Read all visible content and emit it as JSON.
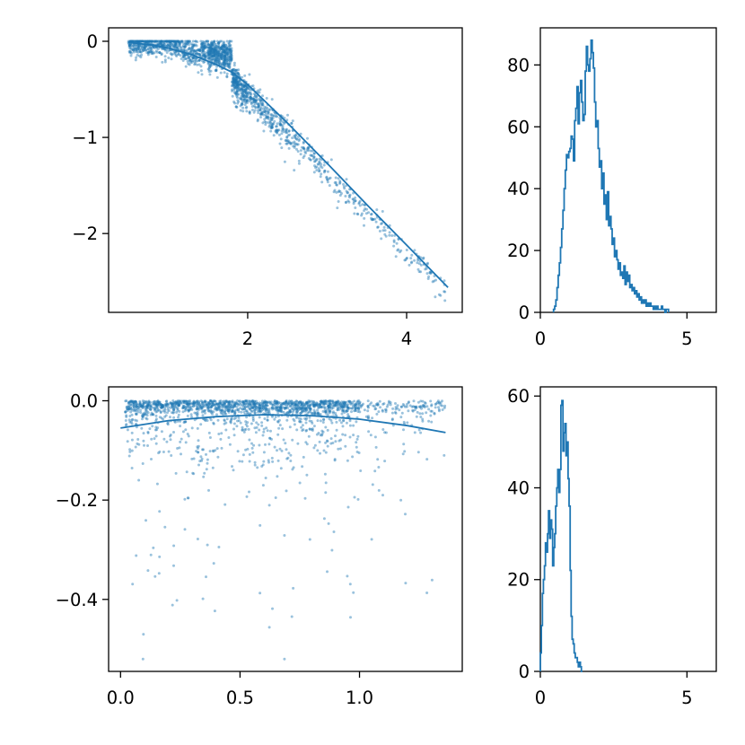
{
  "chart_data": [
    {
      "type": "scatter",
      "title": "",
      "xlabel": "",
      "ylabel": "",
      "xlim": [
        0.25,
        4.7
      ],
      "ylim": [
        -2.82,
        0.14
      ],
      "x_ticks": [
        2,
        4
      ],
      "x_tick_labels": [
        "2",
        "4"
      ],
      "y_ticks": [
        0,
        -1,
        -2
      ],
      "y_tick_labels": [
        "0",
        "−1",
        "−2"
      ],
      "points_color": "#1f77b4",
      "approx_point_count": 1800,
      "scatter_description_values": {
        "x_range": [
          0.45,
          4.55
        ],
        "y_at_x": [
          [
            0.5,
            0.0
          ],
          [
            1.0,
            -0.03
          ],
          [
            1.5,
            -0.12
          ],
          [
            2.0,
            -0.45
          ],
          [
            2.5,
            -0.85
          ],
          [
            3.0,
            -1.25
          ],
          [
            3.5,
            -1.7
          ],
          [
            4.0,
            -2.1
          ],
          [
            4.5,
            -2.6
          ]
        ]
      },
      "fit_line": {
        "x": [
          0.5,
          0.8,
          1.0,
          1.3,
          1.6,
          1.8,
          2.0,
          2.5,
          3.0,
          3.5,
          4.0,
          4.52
        ],
        "y": [
          -0.01,
          -0.04,
          -0.07,
          -0.14,
          -0.24,
          -0.32,
          -0.45,
          -0.85,
          -1.27,
          -1.7,
          -2.12,
          -2.56
        ]
      }
    },
    {
      "type": "bar",
      "subtype": "step-histogram",
      "title": "",
      "xlabel": "",
      "ylabel": "",
      "xlim": [
        0,
        6
      ],
      "ylim": [
        0,
        92
      ],
      "x_ticks": [
        0,
        5
      ],
      "x_tick_labels": [
        "0",
        "5"
      ],
      "y_ticks": [
        0,
        20,
        40,
        60,
        80
      ],
      "y_tick_labels": [
        "0",
        "20",
        "40",
        "60",
        "80"
      ],
      "bin_start": 0.45,
      "bin_width": 0.04,
      "values": [
        1,
        2,
        4,
        8,
        12,
        16,
        21,
        27,
        33,
        40,
        46,
        51,
        50,
        52,
        53,
        57,
        56,
        49,
        62,
        66,
        73,
        61,
        71,
        75,
        68,
        62,
        64,
        78,
        86,
        80,
        78,
        82,
        88,
        84,
        79,
        68,
        60,
        62,
        53,
        47,
        49,
        40,
        45,
        35,
        38,
        30,
        39,
        28,
        31,
        27,
        22,
        24,
        18,
        20,
        17,
        14,
        16,
        12,
        13,
        11,
        15,
        9,
        13,
        10,
        12,
        8,
        9,
        7,
        8,
        6,
        7,
        5,
        6,
        4,
        5,
        3,
        4,
        3,
        4,
        2,
        3,
        2,
        3,
        2,
        2,
        1,
        2,
        1,
        2,
        1,
        1,
        1,
        2,
        1,
        1,
        0,
        1,
        1
      ]
    },
    {
      "type": "scatter",
      "title": "",
      "xlabel": "",
      "ylabel": "",
      "xlim": [
        -0.05,
        1.43
      ],
      "ylim": [
        -0.545,
        0.028
      ],
      "x_ticks": [
        0.0,
        0.5,
        1.0
      ],
      "x_tick_labels": [
        "0.0",
        "0.5",
        "1.0"
      ],
      "y_ticks": [
        0.0,
        -0.2,
        -0.4
      ],
      "y_tick_labels": [
        "0.0",
        "−0.2",
        "−0.4"
      ],
      "points_color": "#1f77b4",
      "approx_point_count": 1800,
      "fit_line": {
        "x": [
          0.0,
          0.2,
          0.4,
          0.6,
          0.8,
          1.0,
          1.2,
          1.36
        ],
        "y": [
          -0.055,
          -0.04,
          -0.032,
          -0.028,
          -0.03,
          -0.037,
          -0.05,
          -0.064
        ]
      }
    },
    {
      "type": "bar",
      "subtype": "step-histogram",
      "title": "",
      "xlabel": "",
      "ylabel": "",
      "xlim": [
        0,
        6
      ],
      "ylim": [
        0,
        62
      ],
      "x_ticks": [
        0,
        5
      ],
      "x_tick_labels": [
        "0",
        "5"
      ],
      "y_ticks": [
        0,
        20,
        40,
        60
      ],
      "y_tick_labels": [
        "0",
        "20",
        "40",
        "60"
      ],
      "bin_start": 0.0,
      "bin_width": 0.035,
      "values": [
        4,
        10,
        17,
        20,
        23,
        28,
        26,
        30,
        35,
        29,
        33,
        31,
        23,
        27,
        30,
        36,
        40,
        44,
        39,
        44,
        58,
        59,
        48,
        52,
        54,
        47,
        50,
        42,
        36,
        22,
        12,
        7,
        6,
        4,
        3,
        3,
        2,
        1,
        2,
        1,
        0
      ]
    }
  ]
}
